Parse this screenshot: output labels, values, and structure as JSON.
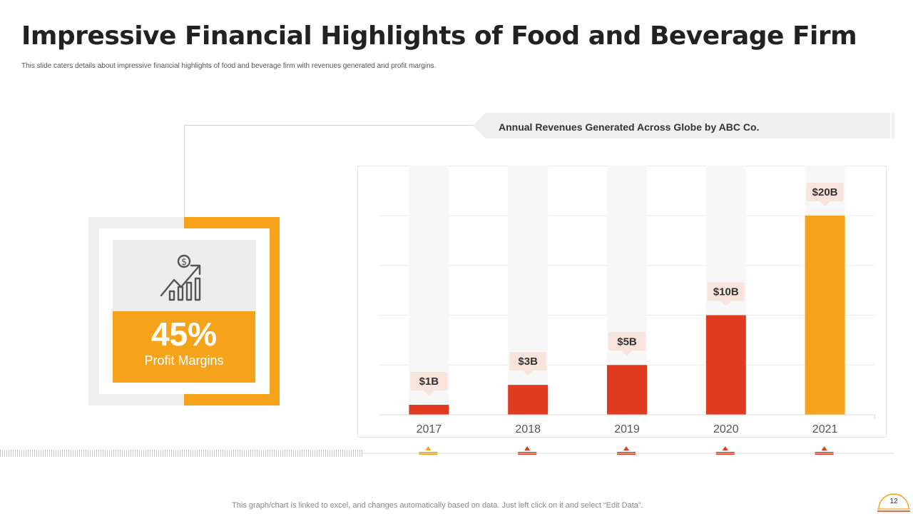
{
  "page": {
    "title": "Impressive Financial Highlights of Food and Beverage Firm",
    "subtitle": "This slide caters details about impressive financial highlights of food and beverage firm with revenues generated and profit margins.",
    "footer_note": "This graph/chart is linked to excel,  and changes automatically based on data. Just left click on it and select “Edit Data”.",
    "page_number": "12"
  },
  "kpi": {
    "value": "45%",
    "label": "Profit Margins",
    "icon": "money-growth-chart-icon"
  },
  "chart_data": {
    "type": "bar",
    "title": "Annual Revenues Generated Across Globe by ABC Co.",
    "categories": [
      "2017",
      "2018",
      "2019",
      "2020",
      "2021"
    ],
    "values": [
      1,
      3,
      5,
      10,
      20
    ],
    "value_labels": [
      "$1B",
      "$3B",
      "$5B",
      "$10B",
      "$20B"
    ],
    "unit": "$B",
    "xlabel": "",
    "ylabel": "",
    "ylim": [
      0,
      20
    ],
    "grid": true,
    "legend": "none"
  },
  "colors": {
    "accent_orange": "#f5a31a",
    "bar_red": "#e03a1f",
    "label_bg": "#f8e3dd",
    "track_bg": "#f7f7f7"
  }
}
